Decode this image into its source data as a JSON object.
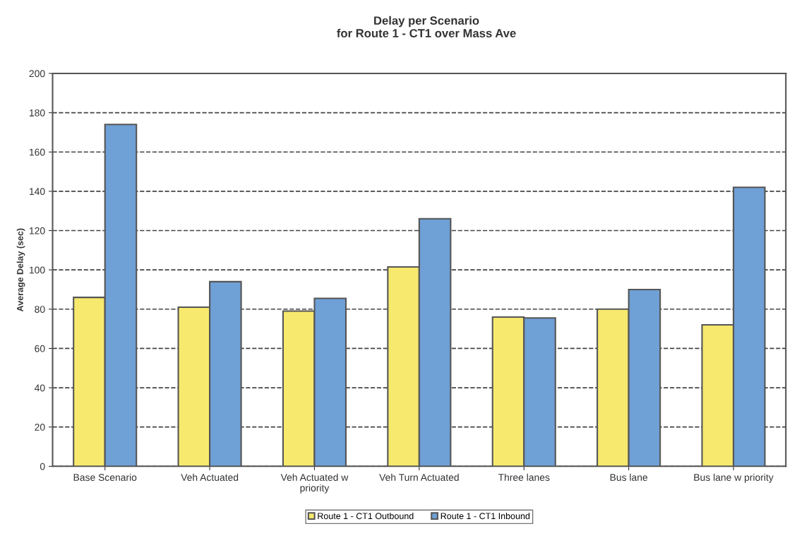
{
  "chart_data": {
    "type": "bar",
    "title": "Delay per Scenario\nfor Route 1 - CT1 over Mass Ave",
    "ylabel": "Average Delay (sec)",
    "categories": [
      "Base Scenario",
      "Veh Actuated",
      "Veh Actuated w\npriority",
      "Veh Turn Actuated",
      "Three lanes",
      "Bus lane",
      "Bus lane w priority"
    ],
    "series": [
      {
        "name": "Route 1 - CT1 Outbound",
        "color": "#f7e96e",
        "values": [
          86,
          81,
          79,
          101.5,
          76,
          80,
          72
        ]
      },
      {
        "name": "Route 1 - CT1 Inbound",
        "color": "#6fa0d6",
        "values": [
          174,
          94,
          85.5,
          126,
          75.5,
          90,
          142
        ]
      }
    ],
    "ylim": [
      0,
      200
    ],
    "yticks": [
      0,
      20,
      40,
      60,
      80,
      100,
      120,
      140,
      160,
      180,
      200
    ],
    "grid": "y",
    "legend": "bottom"
  }
}
